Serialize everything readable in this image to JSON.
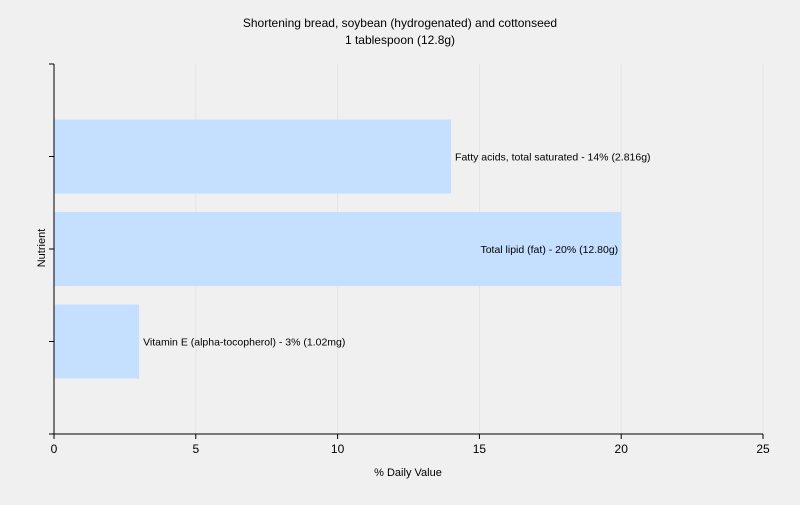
{
  "chart_data": {
    "type": "bar",
    "orientation": "horizontal",
    "title": "Shortening bread, soybean (hydrogenated) and cottonseed",
    "subtitle": "1 tablespoon (12.8g)",
    "xlabel": "% Daily Value",
    "ylabel": "Nutrient",
    "xlim": [
      0,
      25
    ],
    "xticks": [
      0,
      5,
      10,
      15,
      20,
      25
    ],
    "grid": true,
    "legend": "none",
    "colors": {
      "bar": "#c4dfff",
      "background": "#f0f0f0",
      "grid": "#e4e4e4",
      "axis": "#000000"
    },
    "categories": [
      "Fatty acids, total saturated",
      "Total lipid (fat)",
      "Vitamin E (alpha-tocopherol)"
    ],
    "values": [
      14,
      20,
      3
    ],
    "data_labels": [
      "Fatty acids, total saturated - 14% (2.816g)",
      "Total lipid (fat) - 20% (12.80g)",
      "Vitamin E (alpha-tocopherol) - 3% (1.02mg)"
    ]
  }
}
